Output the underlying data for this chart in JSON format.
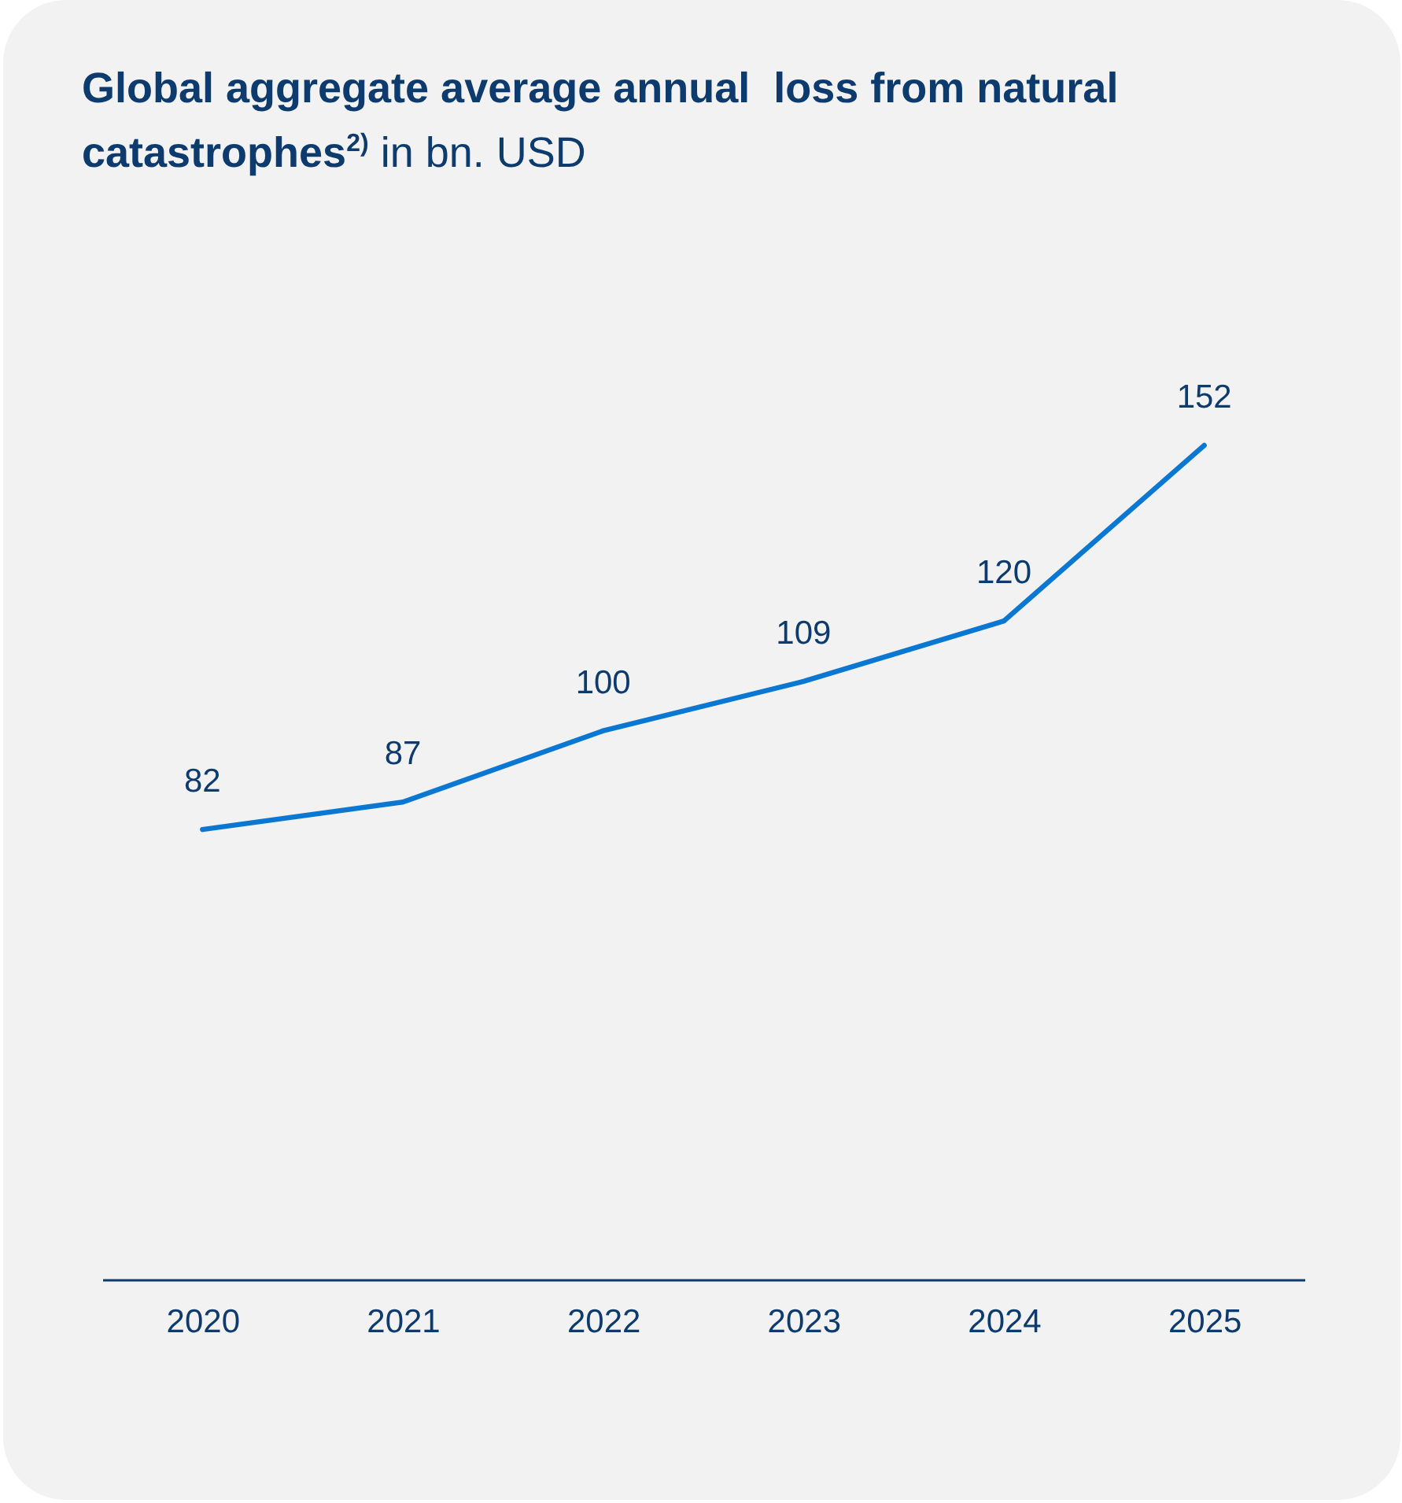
{
  "chart_data": {
    "type": "line",
    "title": "Global aggregate average annual  loss from natural catastrophes$^{2)}$",
    "subtitle": "in bn. USD",
    "categories": [
      "2020",
      "2021",
      "2022",
      "2023",
      "2024",
      "2025"
    ],
    "series": [
      {
        "color": "#0a78d2",
        "values": [
          82,
          87,
          100,
          109,
          120,
          152
        ]
      }
    ],
    "data_labels": true,
    "tick_labels": "x",
    "grid": false,
    "line_style": "solid"
  }
}
